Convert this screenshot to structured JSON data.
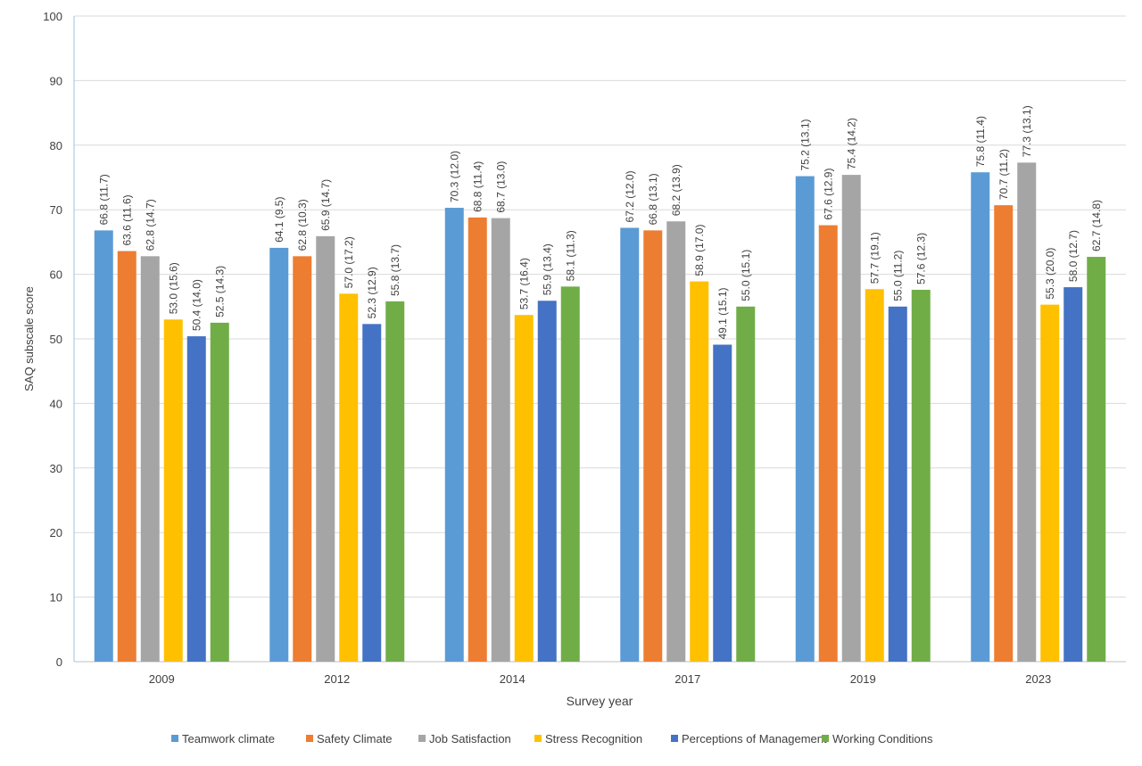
{
  "chart_data": {
    "type": "bar",
    "xlabel": "Survey year",
    "ylabel": "SAQ subscale score",
    "ylim": [
      0,
      100
    ],
    "yticks": [
      0,
      10,
      20,
      30,
      40,
      50,
      60,
      70,
      80,
      90,
      100
    ],
    "grid": true,
    "legend_position": "bottom",
    "categories": [
      "2009",
      "2012",
      "2014",
      "2017",
      "2019",
      "2023"
    ],
    "series": [
      {
        "name": "Teamwork climate",
        "color": "#5B9BD5",
        "values": [
          66.8,
          64.1,
          70.3,
          67.2,
          75.2,
          75.8
        ],
        "labels": [
          "66.8 (11.7)",
          "64.1 (9.5)",
          "70.3 (12.0)",
          "67.2 (12.0)",
          "75.2 (13.1)",
          "75.8 (11.4)"
        ]
      },
      {
        "name": "Safety Climate",
        "color": "#ED7D31",
        "values": [
          63.6,
          62.8,
          68.8,
          66.8,
          67.6,
          70.7
        ],
        "labels": [
          "63.6 (11.6)",
          "62.8 (10.3)",
          "68.8 (11.4)",
          "66.8 (13.1)",
          "67.6 (12.9)",
          "70.7 (11.2)"
        ]
      },
      {
        "name": "Job Satisfaction",
        "color": "#A5A5A5",
        "values": [
          62.8,
          65.9,
          68.7,
          68.2,
          75.4,
          77.3
        ],
        "labels": [
          "62.8 (14.7)",
          "65.9 (14.7)",
          "68.7 (13.0)",
          "68.2 (13.9)",
          "75.4 (14.2)",
          "77.3 (13.1)"
        ]
      },
      {
        "name": "Stress Recognition",
        "color": "#FFC000",
        "values": [
          53.0,
          57.0,
          53.7,
          58.9,
          57.7,
          55.3
        ],
        "labels": [
          "53.0 (15.6)",
          "57.0 (17.2)",
          "53.7 (16.4)",
          "58.9 (17.0)",
          "57.7 (19.1)",
          "55.3 (20.0)"
        ]
      },
      {
        "name": "Perceptions of Management",
        "color": "#4472C4",
        "values": [
          50.4,
          52.3,
          55.9,
          49.1,
          55.0,
          58.0
        ],
        "labels": [
          "50.4 (14.0)",
          "52.3 (12.9)",
          "55.9 (13.4)",
          "49.1 (15.1)",
          "55.0 (11.2)",
          "58.0 (12.7)"
        ]
      },
      {
        "name": "Working Conditions",
        "color": "#70AD47",
        "values": [
          52.5,
          55.8,
          58.1,
          55.0,
          57.6,
          62.7
        ],
        "labels": [
          "52.5 (14.3)",
          "55.8 (13.7)",
          "58.1 (11.3)",
          "55.0 (15.1)",
          "57.6 (12.3)",
          "62.7 (14.8)"
        ]
      }
    ]
  }
}
